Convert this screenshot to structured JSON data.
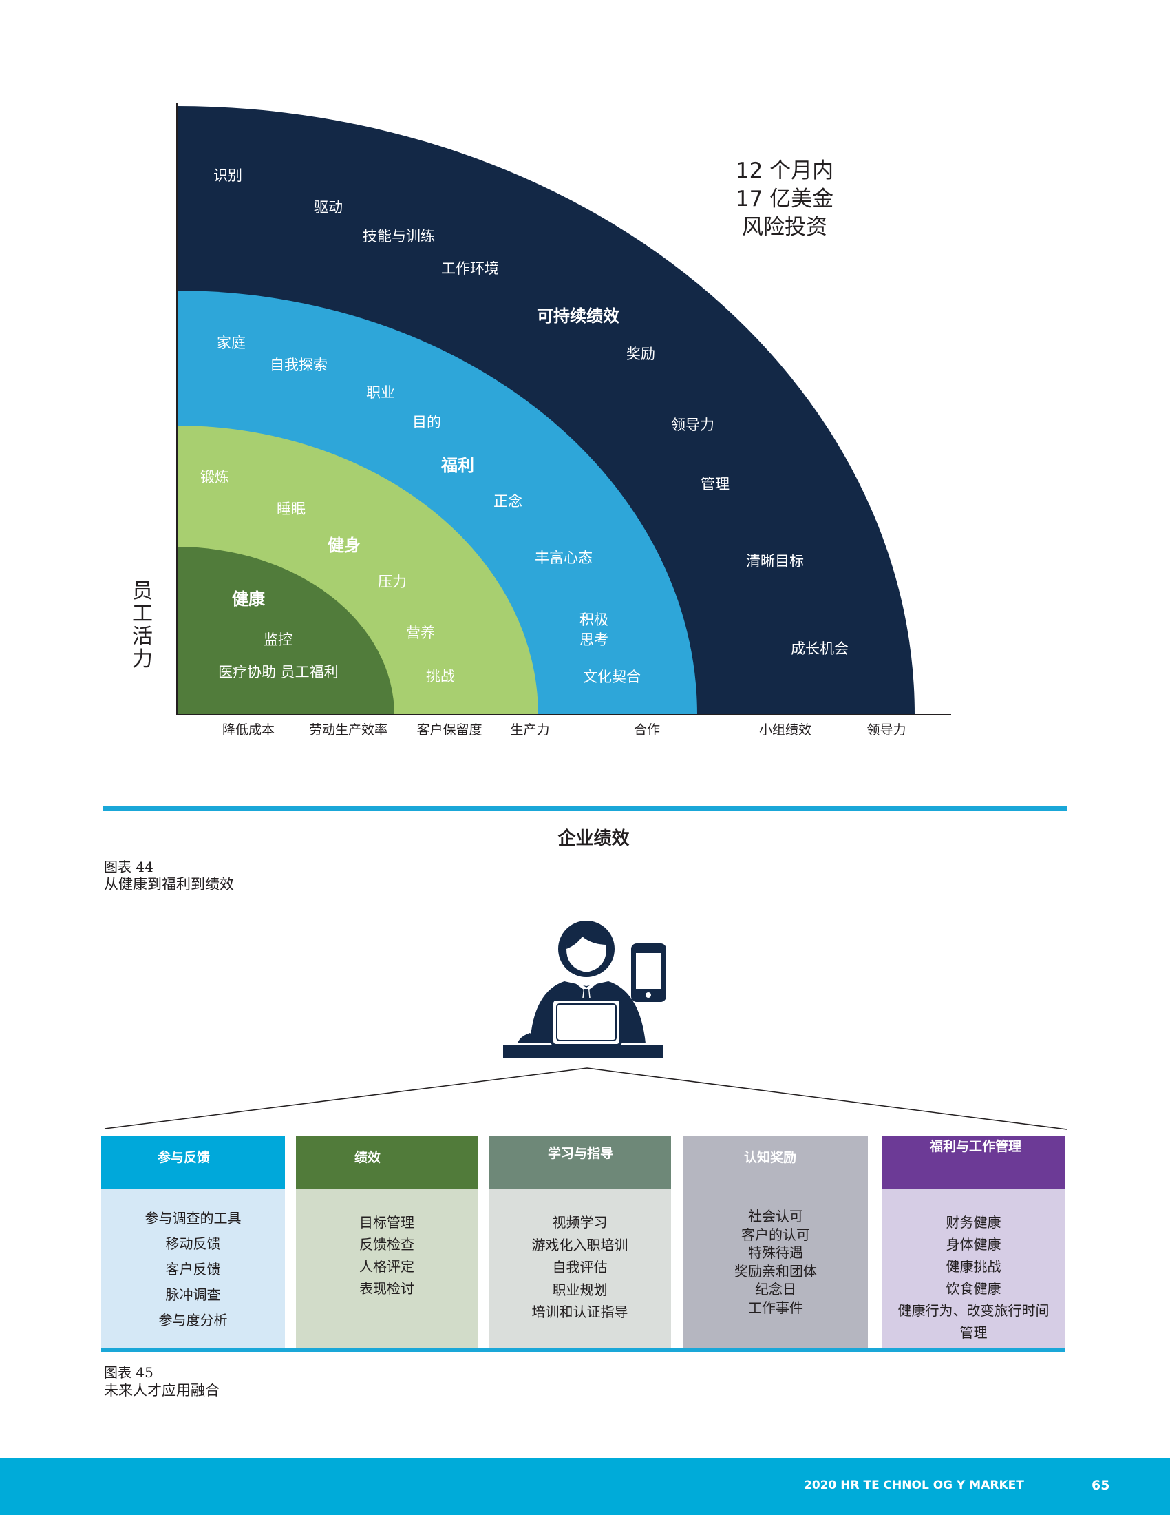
{
  "figure44": {
    "y_axis_label": [
      "员",
      "工",
      "活",
      "力"
    ],
    "x_ticks": [
      "降低成本",
      "劳动生产效率",
      "客户保留度",
      "生产力",
      "合作",
      "小组绩效",
      "领导力"
    ],
    "investment_note": [
      "12 个月内",
      "17 亿美金",
      "风险投资"
    ],
    "bands": [
      {
        "name": "健康",
        "color": "#517c3b",
        "items": [
          "监控",
          "医疗协助 员工福利"
        ]
      },
      {
        "name": "健身",
        "color": "#a8cf70",
        "items": [
          "锻炼",
          "睡眠",
          "压力",
          "营养",
          "挑战"
        ]
      },
      {
        "name": "福利",
        "color": "#2ea6d9",
        "items": [
          "家庭",
          "自我探索",
          "职业",
          "目的",
          "正念",
          "丰富心态",
          "积极",
          "思考",
          "文化契合"
        ]
      },
      {
        "name": "可持续绩效",
        "color": "#132846",
        "items": [
          "识别",
          "驱动",
          "技能与训练",
          "工作环境",
          "奖励",
          "领导力",
          "管理",
          "清晰目标",
          "成长机会"
        ]
      }
    ],
    "x_axis_title": "企业绩效",
    "figure_number": "图表 44",
    "caption": "从健康到福利到绩效"
  },
  "figure45": {
    "columns": [
      {
        "header": "参与反馈",
        "header_color": "#00a8da",
        "body_color": "#d5e8f6",
        "items": [
          "参与调查的工具",
          "移动反馈",
          "客户反馈",
          "脉冲调查",
          "参与度分析"
        ]
      },
      {
        "header": "绩效",
        "header_color": "#517b3a",
        "body_color": "#d2dcc9",
        "items": [
          "目标管理",
          "反馈检查",
          "人格评定",
          "表现检讨"
        ]
      },
      {
        "header": "学习与指导",
        "header_color": "#6e8878",
        "body_color": "#dadedb",
        "items": [
          "视频学习",
          "游戏化入职培训",
          "自我评估",
          "职业规划",
          "培训和认证指导"
        ]
      },
      {
        "header": "认知奖励",
        "header_color": "#b5b6c0",
        "body_color": "#b5b6c0",
        "items": [
          "社会认可",
          "客户的认可",
          "特殊待遇",
          "奖励亲和团体",
          "纪念日",
          "工作事件"
        ]
      },
      {
        "header": "福利与工作管理",
        "header_color": "#6c3a96",
        "body_color": "#d6cde5",
        "items": [
          "财务健康",
          "身体健康",
          "健康挑战",
          "饮食健康",
          "健康行为、改变旅行时间",
          "管理"
        ]
      }
    ],
    "figure_number": "图表 45",
    "caption": "未来人才应用融合"
  },
  "footer": {
    "title": "2020 HR TE CHNOL OG Y MARKET",
    "page": "65",
    "color": "#00abd9"
  }
}
